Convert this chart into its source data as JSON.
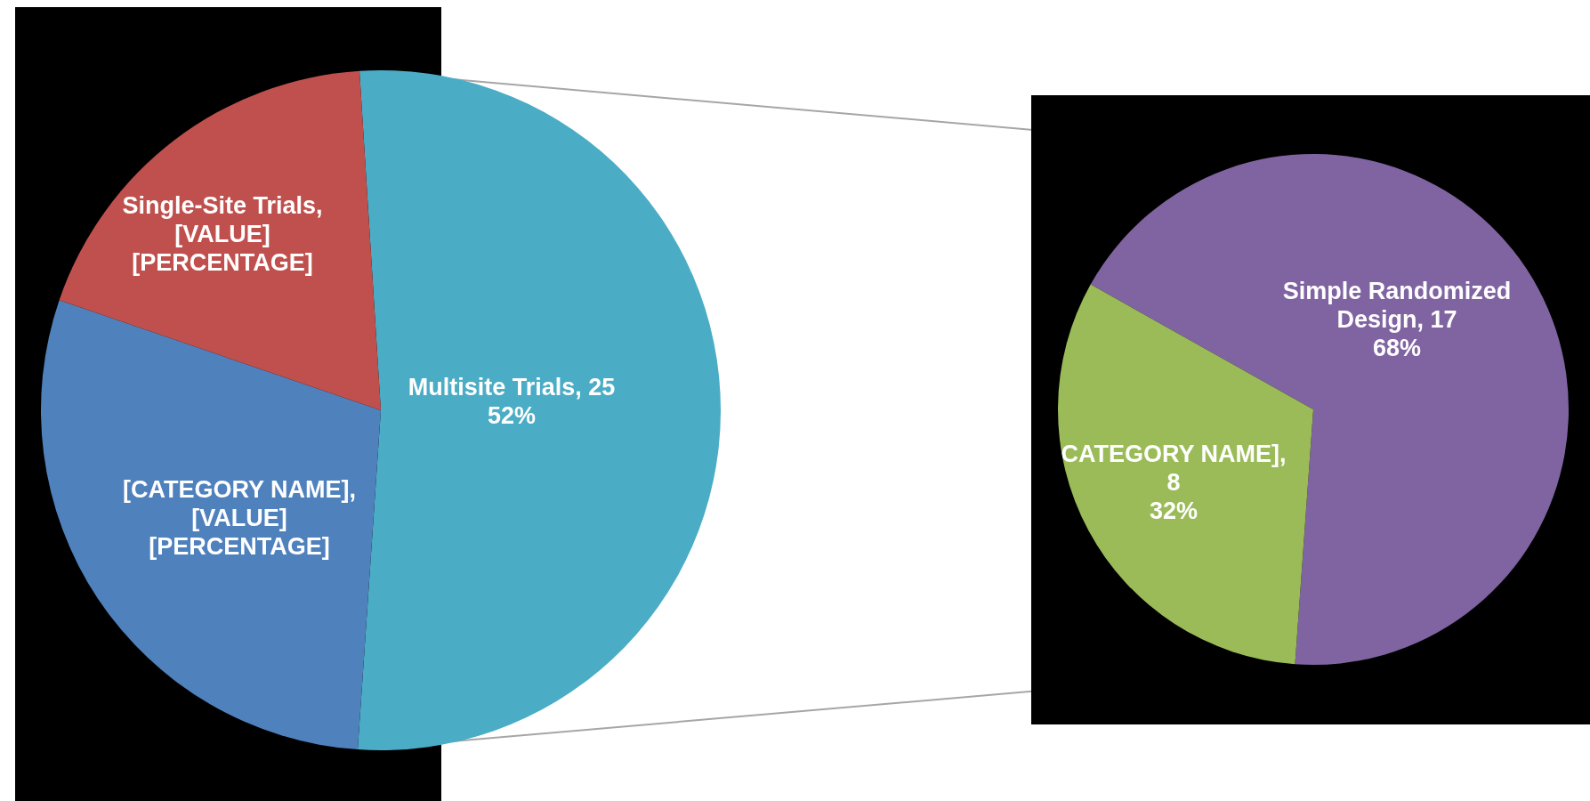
{
  "chart_data": [
    {
      "type": "pie",
      "categories": [
        "Multisite Trials",
        "[CATEGORY NAME]",
        "Single-Site Trials"
      ],
      "values": [
        25,
        14,
        9
      ],
      "colors": [
        "#4bacc6",
        "#4f81bd",
        "#c0504d"
      ],
      "value_labels": [
        ", 25\n52%",
        ",\n[VALUE]\n[PERCENTAGE]",
        ",\n[VALUE]\n[PERCENTAGE]"
      ]
    },
    {
      "type": "pie",
      "categories": [
        "Simple Randomized Design",
        "CATEGORY NAME]"
      ],
      "values": [
        17,
        8
      ],
      "colors": [
        "#8064a2",
        "#9bbb59"
      ],
      "value_labels": [
        ", 17\n68%",
        ",\n8\n32%"
      ]
    }
  ]
}
